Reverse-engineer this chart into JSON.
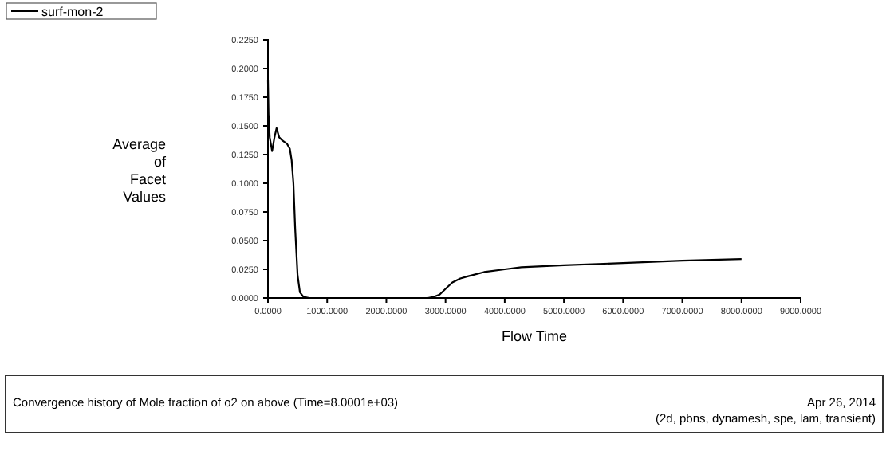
{
  "chart_data": {
    "type": "line",
    "xlabel": "Flow Time",
    "ylabel": "Average\nof\nFacet\nValues",
    "xlim": [
      0,
      9000
    ],
    "ylim": [
      0,
      0.225
    ],
    "xticks": [
      {
        "value": 0,
        "label": "0.0000"
      },
      {
        "value": 1000,
        "label": "1000.0000"
      },
      {
        "value": 2000,
        "label": "2000.0000"
      },
      {
        "value": 3000,
        "label": "3000.0000"
      },
      {
        "value": 4000,
        "label": "4000.0000"
      },
      {
        "value": 5000,
        "label": "5000.0000"
      },
      {
        "value": 6000,
        "label": "6000.0000"
      },
      {
        "value": 7000,
        "label": "7000.0000"
      },
      {
        "value": 8000,
        "label": "8000.0000"
      },
      {
        "value": 9000,
        "label": "9000.0000"
      }
    ],
    "yticks": [
      {
        "value": 0,
        "label": "0.0000"
      },
      {
        "value": 0.025,
        "label": "0.0250"
      },
      {
        "value": 0.05,
        "label": "0.0500"
      },
      {
        "value": 0.075,
        "label": "0.0750"
      },
      {
        "value": 0.1,
        "label": "0.1000"
      },
      {
        "value": 0.125,
        "label": "0.1250"
      },
      {
        "value": 0.15,
        "label": "0.1500"
      },
      {
        "value": 0.175,
        "label": "0.1750"
      },
      {
        "value": 0.2,
        "label": "0.2000"
      },
      {
        "value": 0.225,
        "label": "0.2250"
      }
    ],
    "series": [
      {
        "name": "surf-mon-2",
        "color": "#000000",
        "x": [
          0,
          10,
          30,
          70,
          110,
          145,
          190,
          250,
          320,
          370,
          400,
          430,
          460,
          500,
          540,
          600,
          700,
          1000,
          2000,
          2700,
          2800,
          2900,
          3000,
          3115,
          3250,
          3385,
          3650,
          4000,
          4280,
          5000,
          6000,
          7000,
          8000
        ],
        "values": [
          0.19,
          0.16,
          0.14,
          0.128,
          0.14,
          0.148,
          0.14,
          0.137,
          0.1345,
          0.13,
          0.12,
          0.1,
          0.06,
          0.02,
          0.005,
          0.001,
          0,
          0,
          0,
          0,
          0.001,
          0.003,
          0.008,
          0.0135,
          0.017,
          0.019,
          0.0226,
          0.025,
          0.0268,
          0.0285,
          0.0305,
          0.0325,
          0.034
        ]
      }
    ],
    "legend": "top left",
    "grid": false,
    "annotations": [
      "Convergence history of Mole fraction of o2 on above  (Time=8.0001e+03)",
      "Apr 26, 2014",
      "(2d, pbns, dynamesh, spe, lam, transient)"
    ]
  }
}
